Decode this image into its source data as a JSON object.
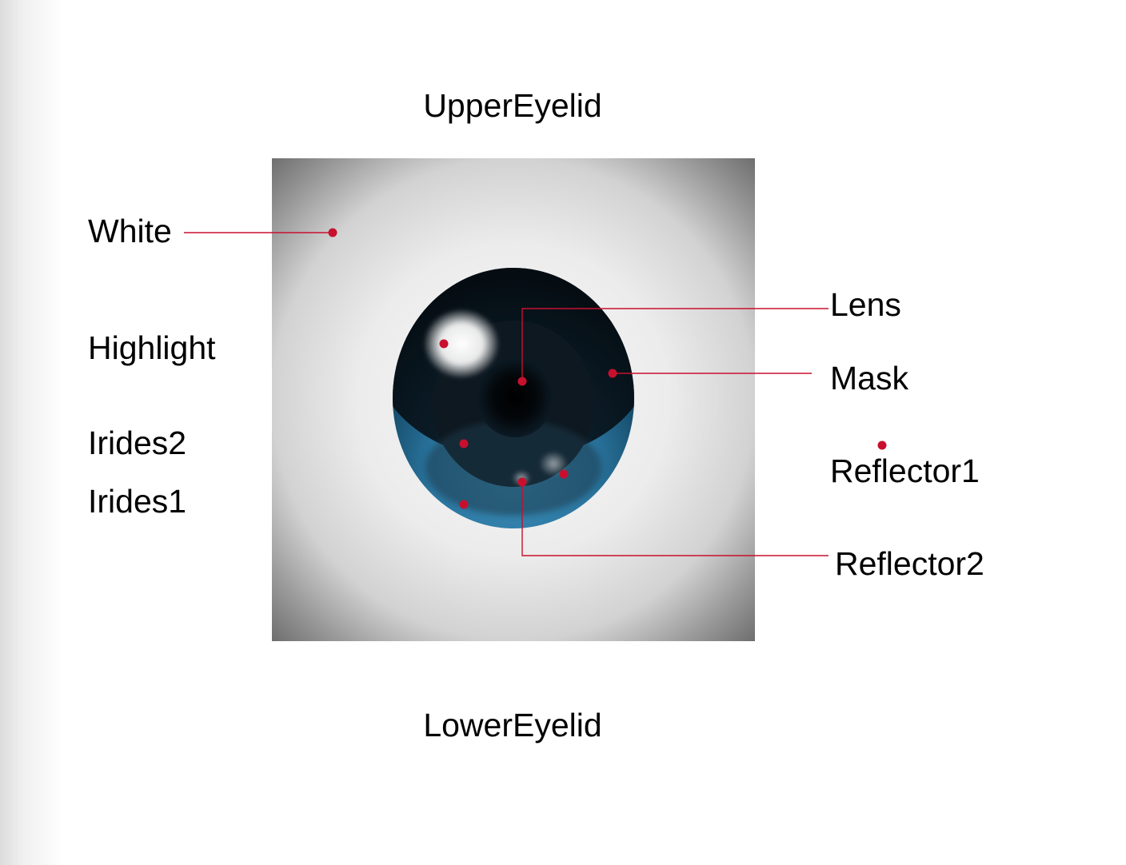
{
  "labels": {
    "upper_eyelid": "UpperEyelid",
    "lower_eyelid": "LowerEyelid",
    "white": "White",
    "highlight": "Highlight",
    "irides2": "Irides2",
    "irides1": "Irides1",
    "lens": "Lens",
    "mask": "Mask",
    "reflector1": "Reflector1",
    "reflector2": "Reflector2"
  },
  "colors": {
    "leader_line": "#c8102e",
    "iris_blue": "#2e7fa8",
    "pupil": "#000000",
    "background_square": "#6e6e6e"
  }
}
